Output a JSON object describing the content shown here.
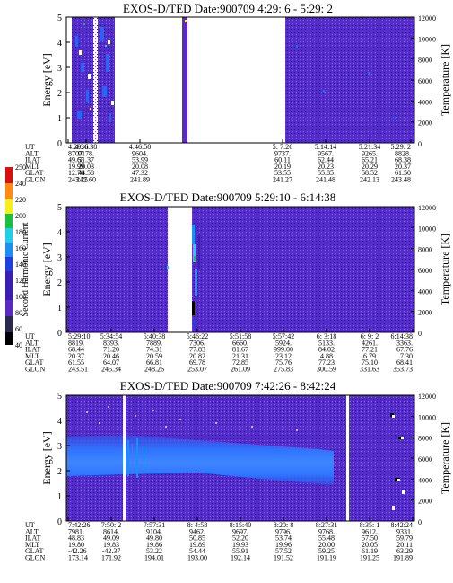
{
  "panels": [
    {
      "title": "EXOS-D/TED   Date:900709  4:29: 6 - 5:29: 2",
      "ylabel_left": "Energy [eV]",
      "ylabel_right": "Temperature [K]",
      "y_ticks": [
        "0",
        "1",
        "2",
        "3",
        "4",
        "5"
      ],
      "t_ticks": [
        "0",
        "2000",
        "4000",
        "6000",
        "8000",
        "10000",
        "12000"
      ],
      "table_labels": [
        "UT",
        "ALT",
        "ILAT",
        "MLT",
        "GLAT",
        "GLON"
      ],
      "columns": [
        [
          "4:29: 6",
          "8707.",
          "49.65",
          "19.99",
          "12.76",
          "243.25"
        ],
        [
          "4:36:38",
          "9178.",
          "51.37",
          "20.03",
          "44.58",
          "242.60"
        ],
        [
          "4:46:50",
          "9604.",
          "53.99",
          "20.08",
          "47.32",
          "241.89"
        ],
        [
          "5: 7:26",
          "9737.",
          "60.11",
          "20.19",
          "53.55",
          "241.27"
        ],
        [
          "5:14:14",
          "9567.",
          "62.44",
          "20.23",
          "55.85",
          "241.48"
        ],
        [
          "5:21:34",
          "9265.",
          "65.21",
          "20.29",
          "58.52",
          "242.13"
        ],
        [
          "5:29: 2",
          "8828.",
          "68.38",
          "20.37",
          "61.50",
          "243.48"
        ]
      ]
    },
    {
      "title": "EXOS-D/TED   Date:900709  5:29:10 - 6:14:38",
      "ylabel_left": "Energy [eV]",
      "ylabel_right": "Temperature [K]",
      "y_ticks": [
        "0",
        "1",
        "2",
        "3",
        "4",
        "5"
      ],
      "t_ticks": [
        "0",
        "2000",
        "4000",
        "6000",
        "8000",
        "10000",
        "12000"
      ],
      "table_labels": [
        "UT",
        "ALT",
        "ILAT",
        "MLT",
        "GLAT",
        "GLON"
      ],
      "columns": [
        [
          "5:29:10",
          "8819.",
          "68.44",
          "20.37",
          "61.55",
          "243.51"
        ],
        [
          "5:34:54",
          "8393.",
          "71.20",
          "20.46",
          "64.07",
          "245.34"
        ],
        [
          "5:40:38",
          "7889.",
          "74.31",
          "20.59",
          "66.81",
          "248.26"
        ],
        [
          "5:46:22",
          "7306.",
          "77.83",
          "20.82",
          "69.78",
          "253.07"
        ],
        [
          "5:51:58",
          "6660.",
          "81.67",
          "21.31",
          "72.85",
          "261.09"
        ],
        [
          "5:57:42",
          "5924.",
          "999.00",
          "23.12",
          "75.76",
          "275.83"
        ],
        [
          "6: 3:18",
          "5133.",
          "84.02",
          "4.88",
          "77.23",
          "300.59"
        ],
        [
          "6: 9: 2",
          "4261.",
          "77.21",
          "6.79",
          "75.10",
          "331.63"
        ],
        [
          "6:14:38",
          "3363.",
          "67.76",
          "7.30",
          "68.41",
          "353.73"
        ]
      ]
    },
    {
      "title": "EXOS-D/TED   Date:900709  7:42:26 - 8:42:24",
      "ylabel_left": "Energy [eV]",
      "ylabel_right": "Temperature [K]",
      "y_ticks": [
        "0",
        "1",
        "2",
        "3",
        "4",
        "5"
      ],
      "t_ticks": [
        "0",
        "2000",
        "4000",
        "6000",
        "8000",
        "10000",
        "12000"
      ],
      "table_labels": [
        "UT",
        "ALT",
        "ILAT",
        "MLT",
        "GLAT",
        "GLON"
      ],
      "columns": [
        [
          "7:42:26",
          "7981.",
          "48.83",
          "19.80",
          "-42.26",
          "173.14"
        ],
        [
          "7:50: 2",
          "8614.",
          "49.09",
          "19.83",
          "-42.37",
          "171.92"
        ],
        [
          "7:57:31",
          "9104.",
          "49.80",
          "19.86",
          "53.22",
          "194.01"
        ],
        [
          "8: 4:58",
          "9462.",
          "50.85",
          "19.89",
          "54.44",
          "193.00"
        ],
        [
          "8:15:40",
          "9697.",
          "52.20",
          "19.93",
          "55.91",
          "192.14"
        ],
        [
          "8:20: 8",
          "9796.",
          "53.74",
          "19.96",
          "57.52",
          "191.52"
        ],
        [
          "8:27:31",
          "9768.",
          "55.48",
          "20.00",
          "59.25",
          "191.19"
        ],
        [
          "8:35: 1",
          "9612.",
          "57.50",
          "20.05",
          "61.19",
          "191.25"
        ],
        [
          "8:42:24",
          "9331.",
          "59.79",
          "20.11",
          "63.29",
          "191.89"
        ]
      ]
    }
  ],
  "colorbar": {
    "label": "Second Harmonic Current",
    "ticks": [
      "40",
      "60",
      "80",
      "100",
      "120",
      "140",
      "160",
      "180",
      "200",
      "220",
      "240",
      "250"
    ]
  },
  "colors": {
    "background": "#5a29c6",
    "speckle": "#2a15a0",
    "band": "#2c63f4",
    "band_core": "#3f86ff",
    "cyan": "#22cde6",
    "green": "#18c23c",
    "yellow": "#f4f01c"
  },
  "chart_data": [
    {
      "type": "heatmap",
      "title": "EXOS-D/TED   Date:900709  4:29: 6 - 5:29: 2",
      "xlabel": "UT",
      "ylabel": "Energy [eV]",
      "y2label": "Temperature [K]",
      "ylim": [
        0,
        5
      ],
      "y2lim": [
        0,
        12000
      ],
      "x_ticks": [
        "4:29: 6",
        "4:36:38",
        "4:46:50",
        "5: 7:26",
        "5:14:14",
        "5:21:34",
        "5:29: 2"
      ],
      "data_gaps": [
        [
          "4:38:30",
          "4:54:00"
        ],
        [
          "4:55:30",
          "5: 6:00"
        ]
      ]
    },
    {
      "type": "heatmap",
      "title": "EXOS-D/TED   Date:900709  5:29:10 - 6:14:38",
      "xlabel": "UT",
      "ylabel": "Energy [eV]",
      "y2label": "Temperature [K]",
      "ylim": [
        0,
        5
      ],
      "y2lim": [
        0,
        12000
      ],
      "x_ticks": [
        "5:29:10",
        "5:34:54",
        "5:40:38",
        "5:46:22",
        "5:51:58",
        "5:57:42",
        "6: 3:18",
        "6: 9: 2",
        "6:14:38"
      ],
      "data_gaps": [
        [
          "5:44:10",
          "5:46:20"
        ]
      ]
    },
    {
      "type": "heatmap",
      "title": "EXOS-D/TED   Date:900709  7:42:26 - 8:42:24",
      "xlabel": "UT",
      "ylabel": "Energy [eV]",
      "y2label": "Temperature [K]",
      "ylim": [
        0,
        5
      ],
      "y2lim": [
        0,
        12000
      ],
      "x_ticks": [
        "7:42:26",
        "7:50: 2",
        "7:57:31",
        "8: 4:58",
        "8:15:40",
        "8:20: 8",
        "8:27:31",
        "8:35: 1",
        "8:42:24"
      ],
      "band_energy_range": [
        1.6,
        3.2
      ],
      "data_gaps": [
        [
          "7:56:40",
          "7:57:10"
        ],
        [
          "8:33:40",
          "8:34:10"
        ]
      ]
    }
  ]
}
